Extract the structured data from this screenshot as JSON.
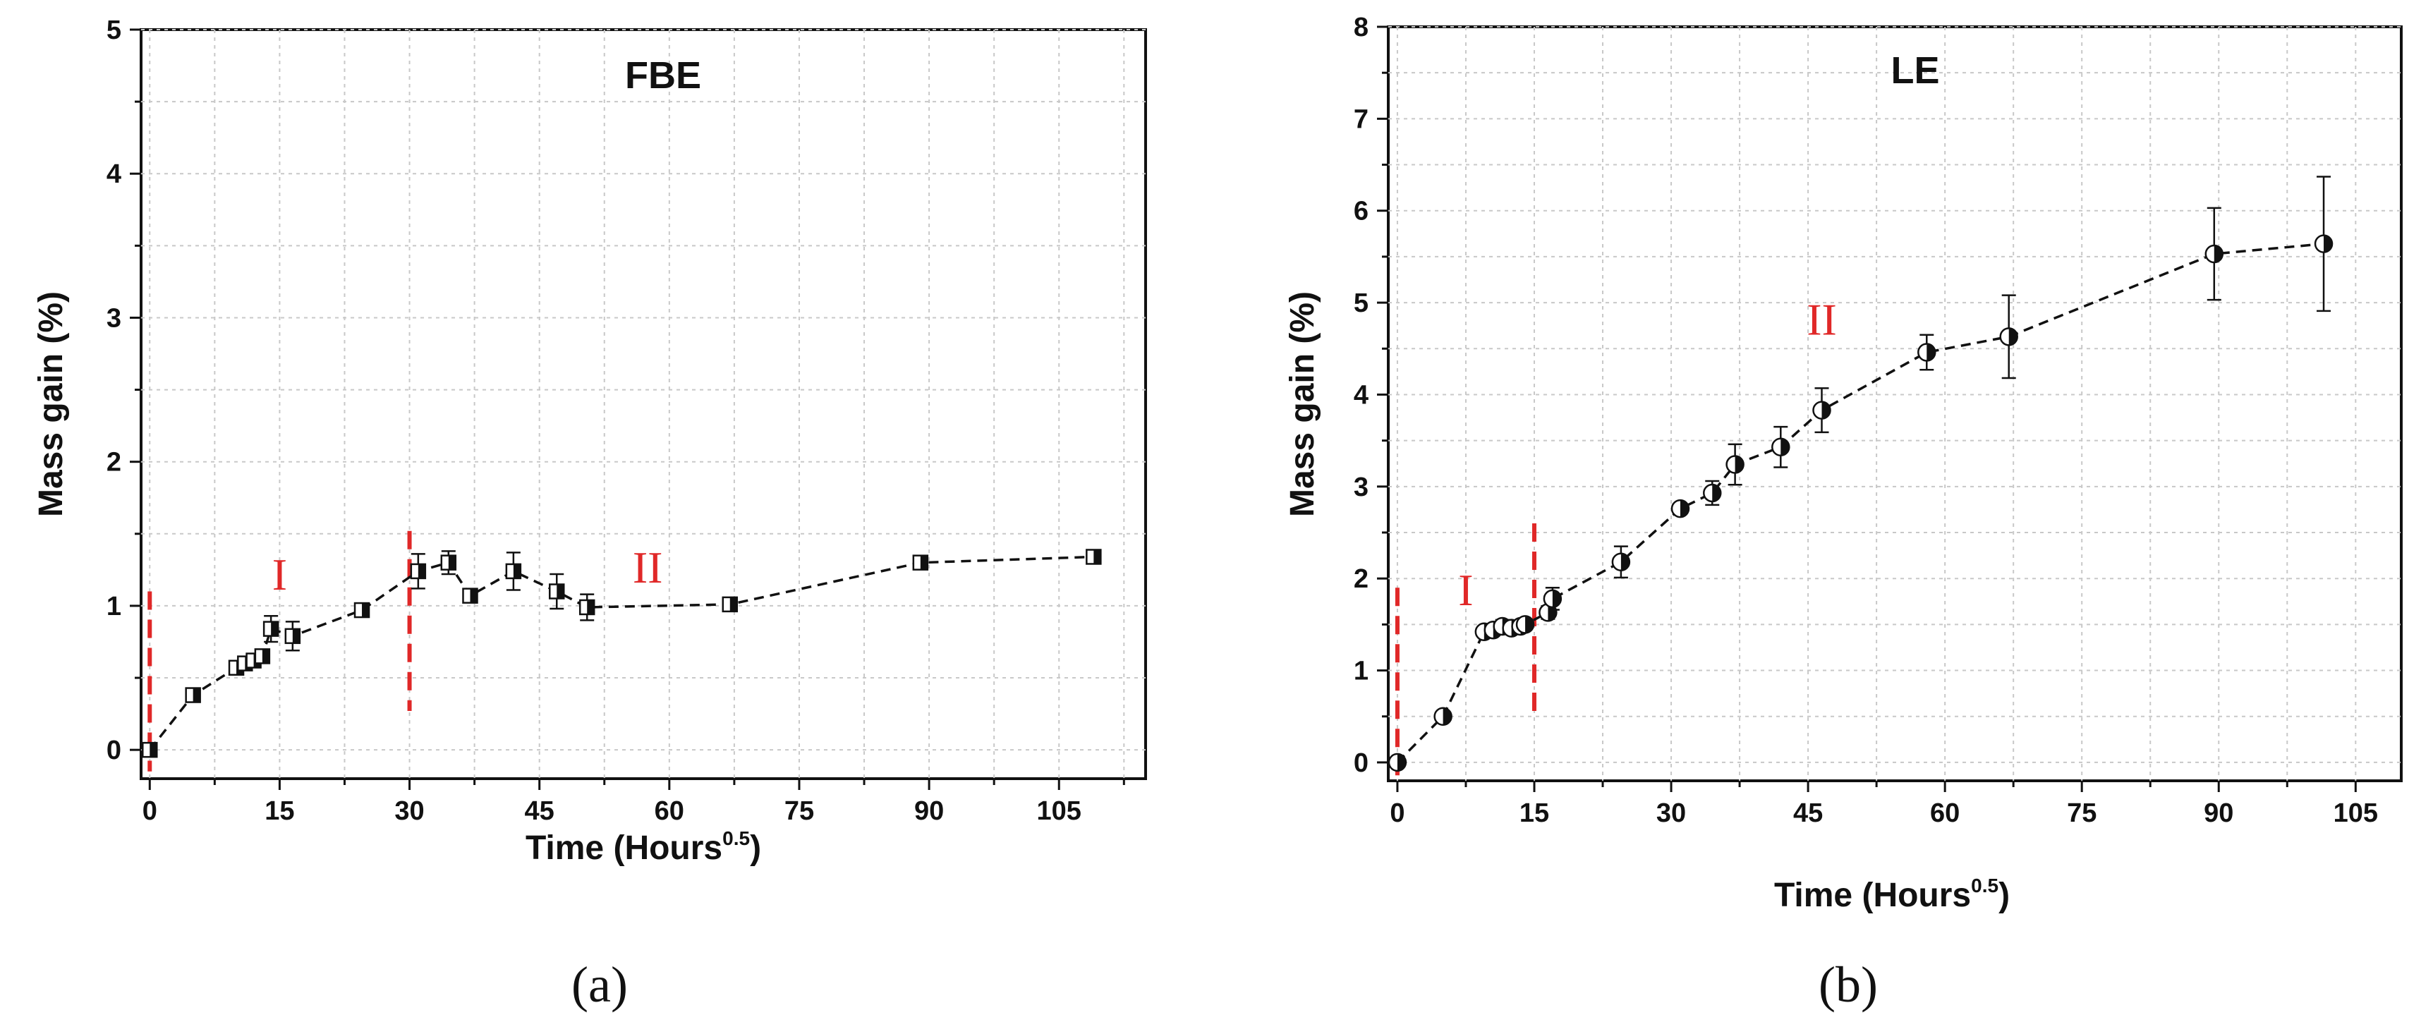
{
  "chart_data": [
    {
      "type": "line",
      "panel_label": "(a)",
      "title": "FBE",
      "xlabel": "Time (Hours",
      "xlabel_sup": "0.5",
      "xlabel_close": ")",
      "ylabel": "Mass gain (%)",
      "xlim": [
        -1,
        115
      ],
      "ylim": [
        -0.2,
        5
      ],
      "xticks": [
        0,
        15,
        30,
        45,
        60,
        75,
        90,
        105
      ],
      "yticks": [
        0,
        1,
        2,
        3,
        4,
        5
      ],
      "grid": true,
      "marker": "half-filled-square",
      "line_style": "dashed",
      "region_labels": [
        {
          "text": "I",
          "x": 15,
          "y": 1.22
        },
        {
          "text": "II",
          "x": 57.5,
          "y": 1.27
        }
      ],
      "region_boundaries": [
        {
          "x": 0,
          "y_from": -0.15,
          "y_to": 1.1
        },
        {
          "x": 30,
          "y_from": 0.27,
          "y_to": 1.52
        }
      ],
      "series": [
        {
          "x": [
            0,
            5,
            10,
            11,
            12,
            13,
            14,
            16.5,
            24.5,
            31,
            34.5,
            37,
            42,
            47,
            50.5,
            67,
            89,
            109
          ],
          "y": [
            0,
            0.38,
            0.57,
            0.6,
            0.62,
            0.65,
            0.84,
            0.79,
            0.97,
            1.24,
            1.3,
            1.07,
            1.24,
            1.1,
            0.99,
            1.01,
            1.3,
            1.34
          ],
          "error": [
            0.02,
            0.03,
            0.03,
            0.03,
            0.03,
            0.04,
            0.09,
            0.1,
            0.03,
            0.12,
            0.08,
            0.03,
            0.13,
            0.12,
            0.09,
            0.03,
            0.03,
            0.04
          ]
        }
      ]
    },
    {
      "type": "line",
      "panel_label": "(b)",
      "title": "LE",
      "xlabel": "Time (Hours",
      "xlabel_sup": "0.5",
      "xlabel_close": ")",
      "ylabel": "Mass gain (%)",
      "xlim": [
        -1,
        110
      ],
      "ylim": [
        -0.2,
        8
      ],
      "xticks": [
        0,
        15,
        30,
        45,
        60,
        75,
        90,
        105
      ],
      "yticks": [
        0,
        1,
        2,
        3,
        4,
        5,
        6,
        7,
        8
      ],
      "grid": true,
      "marker": "half-filled-circle",
      "line_style": "dashed",
      "region_labels": [
        {
          "text": "I",
          "x": 7.5,
          "y": 1.88
        },
        {
          "text": "II",
          "x": 46.5,
          "y": 4.82
        }
      ],
      "region_boundaries": [
        {
          "x": 0,
          "y_from": -0.15,
          "y_to": 1.9
        },
        {
          "x": 15,
          "y_from": 0.55,
          "y_to": 2.6
        }
      ],
      "series": [
        {
          "x": [
            0,
            5,
            9.5,
            10.5,
            11.5,
            12.5,
            13.5,
            14,
            16.5,
            17,
            24.5,
            31,
            34.5,
            37,
            42,
            46.5,
            58,
            67,
            89.5,
            101.5
          ],
          "y": [
            0,
            0.5,
            1.42,
            1.44,
            1.48,
            1.46,
            1.48,
            1.5,
            1.63,
            1.78,
            2.18,
            2.76,
            2.93,
            3.24,
            3.43,
            3.83,
            4.46,
            4.63,
            5.53,
            5.64
          ],
          "error": [
            0.02,
            0.04,
            0.05,
            0.05,
            0.07,
            0.06,
            0.06,
            0.05,
            0.07,
            0.12,
            0.17,
            0.04,
            0.13,
            0.22,
            0.22,
            0.24,
            0.19,
            0.45,
            0.5,
            0.73
          ]
        }
      ]
    }
  ]
}
